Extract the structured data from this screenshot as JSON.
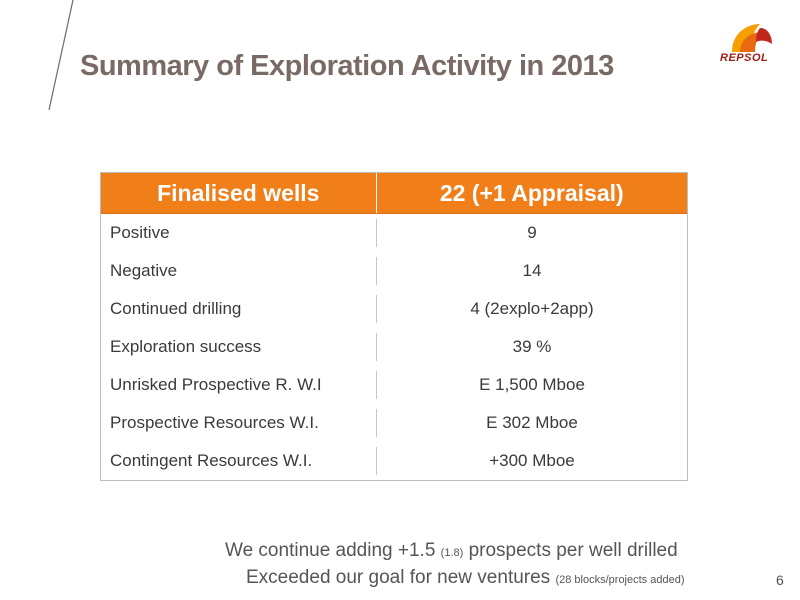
{
  "slide": {
    "title": "Summary of Exploration Activity in 2013",
    "logo_text": "REPSOL",
    "page_number": "6"
  },
  "table": {
    "headers": [
      "Finalised wells",
      "22 (+1 Appraisal)"
    ],
    "rows": [
      {
        "label": "Positive",
        "value": "9"
      },
      {
        "label": "Negative",
        "value": "14"
      },
      {
        "label": "Continued drilling",
        "value": "4 (2explo+2app)"
      },
      {
        "label": "Exploration success",
        "value": "39 %"
      },
      {
        "label": "Unrisked Prospective R. W.I",
        "value": "E 1,500  Mboe"
      },
      {
        "label": "Prospective Resources W.I.",
        "value": "E 302   Mboe"
      },
      {
        "label": "Contingent Resources  W.I.",
        "value": "+300   Mboe"
      }
    ]
  },
  "footer": {
    "line1_main": "We continue adding +1.5 ",
    "line1_small": "(1.8)",
    "line1_end": " prospects per well drilled",
    "line2_main": "Exceeded our goal for new ventures ",
    "line2_small": "(28 blocks/projects added)"
  },
  "colors": {
    "header_orange": "#f07f1a",
    "title_gray": "#7a6a66",
    "logo_red": "#a01f14",
    "logo_orange": "#f5a000"
  }
}
